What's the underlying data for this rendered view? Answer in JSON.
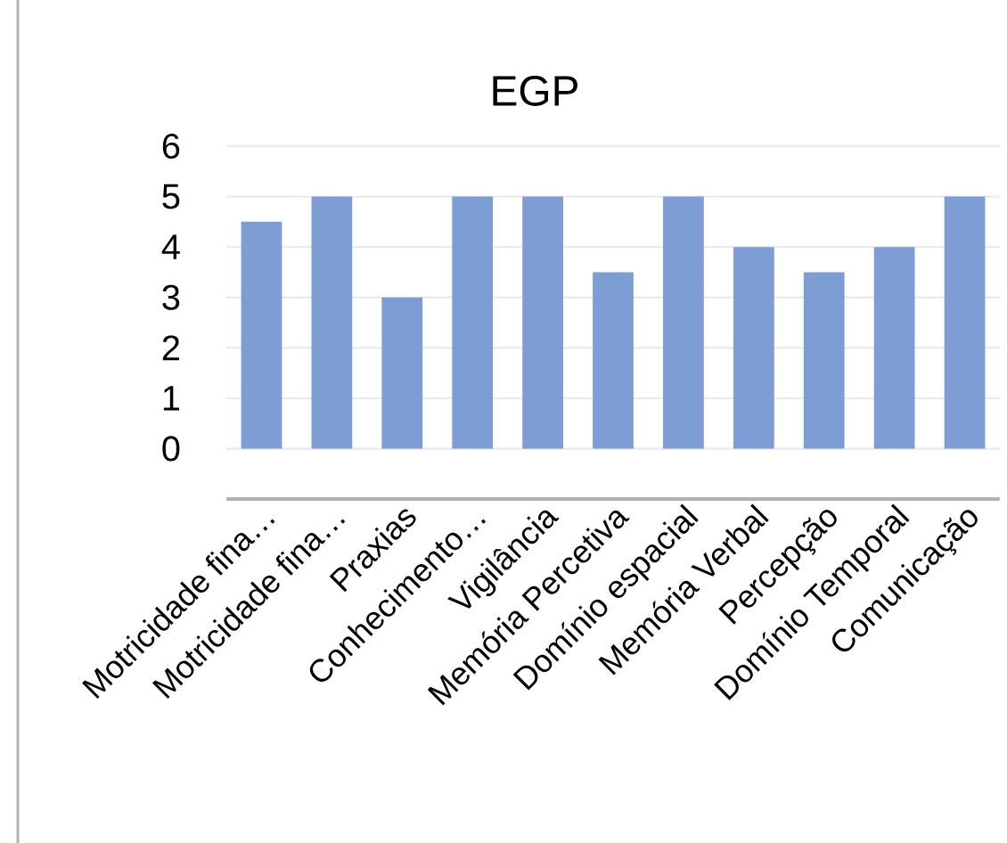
{
  "chart_data": {
    "type": "bar",
    "title": "EGP",
    "categories": [
      "Motricidade fina…",
      "Motricidade fina…",
      "Praxias",
      "Conhecimento…",
      "Vigilância",
      "Memória Percetiva",
      "Domínio espacial",
      "Memória Verbal",
      "Percepção",
      "Domínio Temporal",
      "Comunicação"
    ],
    "values": [
      4.5,
      5,
      3,
      5,
      5,
      3.5,
      5,
      4,
      3.5,
      4,
      5
    ],
    "color": "#7f9dd5",
    "ylim": [
      -1,
      6
    ],
    "yticks": [
      {
        "value": -1,
        "label": null
      },
      0,
      1,
      2,
      3,
      4,
      5,
      6
    ],
    "grid": "y"
  }
}
